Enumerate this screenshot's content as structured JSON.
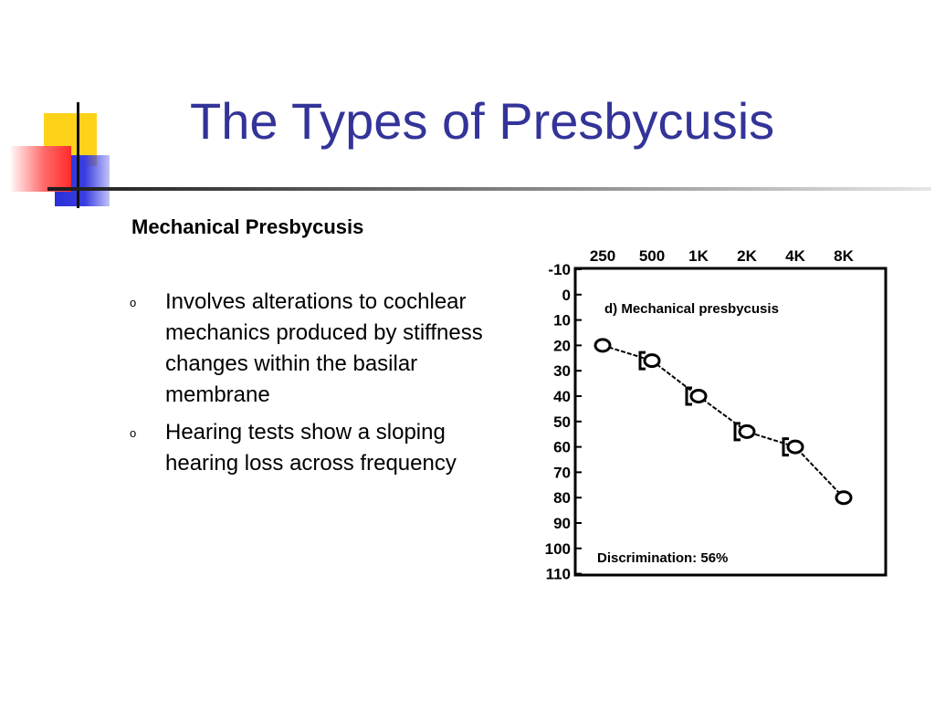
{
  "slide": {
    "title": "The Types of Presbycusis",
    "subtitle": "Mechanical Presbycusis",
    "bullet_marker": "o",
    "bullets": [
      "Involves alterations to cochlear mechanics produced by stiffness changes within the basilar membrane",
      "Hearing tests show a sloping hearing loss across frequency"
    ],
    "colors": {
      "title": "#333399",
      "accent_yellow": "#ffd21a",
      "accent_blue": "#2b2fd8",
      "accent_red": "#ff2a2a"
    }
  },
  "chart_data": {
    "type": "line",
    "title": "d)  Mechanical  presbycusis",
    "annotation": "Discrimination:  56%",
    "categories": [
      "250",
      "500",
      "1K",
      "2K",
      "4K",
      "8K"
    ],
    "ylim": [
      -10,
      110
    ],
    "y_ticks": [
      "-10",
      "0",
      "10",
      "20",
      "30",
      "40",
      "50",
      "60",
      "70",
      "80",
      "90",
      "100",
      "110"
    ],
    "y_inverted": true,
    "grid": false,
    "series": [
      {
        "marker": "circle",
        "values": [
          20,
          26,
          40,
          54,
          60,
          80
        ]
      },
      {
        "marker": "bracket",
        "values": [
          null,
          26,
          40,
          54,
          60,
          null
        ]
      }
    ]
  }
}
